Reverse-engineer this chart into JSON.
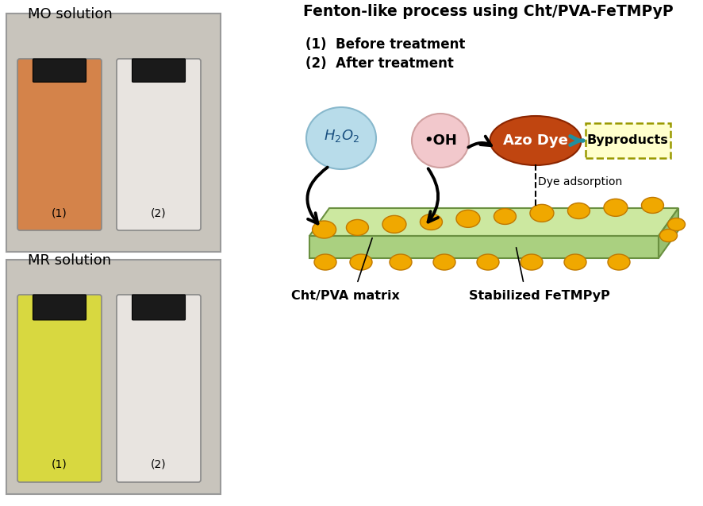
{
  "title": "Fenton-like process using Cht/PVA-FeTMPyP",
  "label1": "(1)  Before treatment",
  "label2": "(2)  After treatment",
  "oh_label": "•OH",
  "azo_label": "Azo Dye",
  "byproducts_label": "Byproducts",
  "dye_adsorption_label": "Dye adsorption",
  "cht_pva_label": "Cht/PVA matrix",
  "fetmpyp_label": "Stabilized FeTMPyP",
  "h2o2_color": "#b8dcea",
  "oh_color": "#f2c8cc",
  "azo_color": "#c04510",
  "byproducts_fill": "#ffffcc",
  "film_top_color": "#cce8a0",
  "film_side_color": "#aad080",
  "film_right_color": "#98c070",
  "film_edge_color": "#6a9040",
  "dot_color": "#f0a800",
  "dot_edge_color": "#c07800",
  "bg_color": "#ffffff",
  "mo_title": "MO solution",
  "mr_title": "MR solution",
  "photo1_bg": "#d4d0c8",
  "photo2_bg": "#d4d0c8",
  "mo_bottle1_color": "#d4834a",
  "mo_bottle2_color": "#e8e4e0",
  "mr_bottle1_color": "#d8d840",
  "mr_bottle2_color": "#e8e4e0"
}
